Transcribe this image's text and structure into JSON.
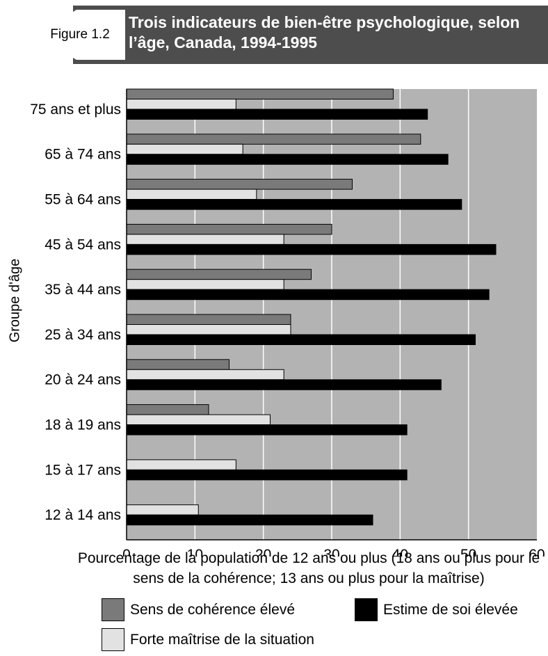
{
  "header": {
    "figure_label": "Figure 1.2",
    "title": "Trois indicateurs de bien-être psychologique, selon l’âge, Canada, 1994-1995"
  },
  "chart_data": {
    "type": "bar",
    "orientation": "horizontal",
    "title": "Trois indicateurs de bien-être psychologique, selon l’âge, Canada, 1994-1995",
    "xlabel": "Pourcentage de la population de 12 ans ou plus (18 ans ou plus pour le sens de la cohérence; 13 ans ou plus pour la maîtrise)",
    "ylabel": "Groupe d'âge",
    "xlim": [
      0,
      60
    ],
    "xticks": [
      0,
      10,
      20,
      30,
      40,
      50,
      60
    ],
    "grid": true,
    "legend_position": "bottom",
    "categories": [
      "75 ans et plus",
      "65 à 74 ans",
      "55 à 64 ans",
      "45 à 54 ans",
      "35 à 44 ans",
      "25 à 34 ans",
      "20 à 24 ans",
      "18 à 19 ans",
      "15 à 17 ans",
      "12 à 14 ans"
    ],
    "series": [
      {
        "name": "Sens de cohérence élevé",
        "color": "#7a7a7a",
        "values": [
          39,
          43,
          33,
          30,
          27,
          24,
          15,
          12,
          null,
          null
        ]
      },
      {
        "name": "Forte maîtrise de la situation",
        "color": "#e2e2e2",
        "values": [
          16,
          17,
          19,
          23,
          23,
          24,
          23,
          21,
          16,
          10.5
        ]
      },
      {
        "name": "Estime de soi élevée",
        "color": "#000000",
        "values": [
          44,
          47,
          49,
          54,
          53,
          51,
          46,
          41,
          41,
          36
        ]
      }
    ],
    "plot_background": "#b3b3b3",
    "gridline_color": "#ffffff"
  }
}
